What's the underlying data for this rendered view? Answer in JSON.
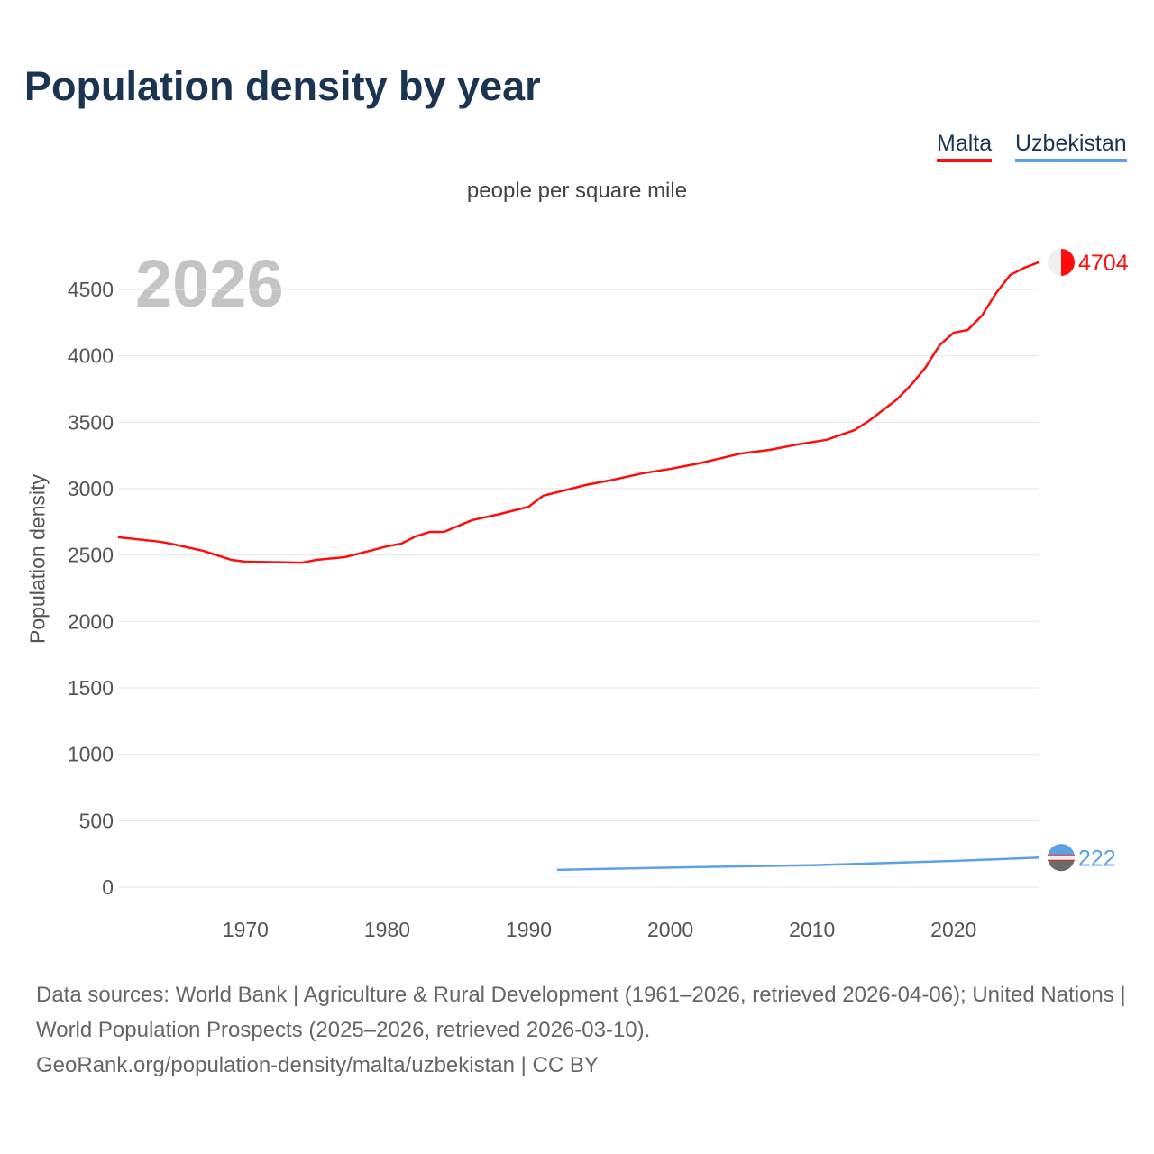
{
  "title": "Population density by year",
  "legend": [
    {
      "label": "Malta",
      "color": "#ff0d0d"
    },
    {
      "label": "Uzbekistan",
      "color": "#5ba1e8"
    }
  ],
  "footer": {
    "line1": "Data sources: World Bank | Agriculture & Rural Development (1961–2026, retrieved 2026-04-06); United Nations | World Population Prospects (2025–2026, retrieved 2026-03-10).",
    "line2": "GeoRank.org/population-density/malta/uzbekistan | CC BY"
  },
  "chart_data": {
    "type": "line",
    "title": "Population density by year",
    "subtitle": "people per square mile",
    "ylabel": "Population density",
    "xlabel": "",
    "year_label": "2026",
    "xlim": [
      1961,
      2026
    ],
    "ylim": [
      0,
      4500
    ],
    "xticks": [
      1970,
      1980,
      1990,
      2000,
      2010,
      2020
    ],
    "yticks": [
      0,
      500,
      1000,
      1500,
      2000,
      2500,
      3000,
      3500,
      4000,
      4500
    ],
    "grid": true,
    "legend_position": "top-right",
    "series": [
      {
        "name": "Malta",
        "color": "#ff0d0d",
        "end_label": "4704",
        "x": [
          1961,
          1964,
          1965,
          1967,
          1969,
          1970,
          1974,
          1975,
          1977,
          1979,
          1980,
          1981,
          1982,
          1983,
          1984,
          1986,
          1988,
          1989,
          1990,
          1991,
          1994,
          1996,
          1998,
          2000,
          2002,
          2005,
          2007,
          2009,
          2011,
          2013,
          2014,
          2016,
          2017,
          2018,
          2019,
          2020,
          2021,
          2022,
          2023,
          2024,
          2025,
          2026
        ],
        "y": [
          2634,
          2600,
          2579,
          2532,
          2464,
          2450,
          2443,
          2464,
          2484,
          2538,
          2566,
          2586,
          2640,
          2674,
          2674,
          2763,
          2810,
          2837,
          2864,
          2946,
          3027,
          3068,
          3115,
          3149,
          3190,
          3265,
          3292,
          3333,
          3367,
          3441,
          3509,
          3672,
          3781,
          3910,
          4079,
          4174,
          4195,
          4303,
          4473,
          4609,
          4663,
          4704
        ]
      },
      {
        "name": "Uzbekistan",
        "color": "#5ba1e8",
        "end_label": "222",
        "x": [
          1992,
          2000,
          2010,
          2020,
          2026
        ],
        "y": [
          130,
          147,
          165,
          197,
          222
        ]
      }
    ]
  }
}
